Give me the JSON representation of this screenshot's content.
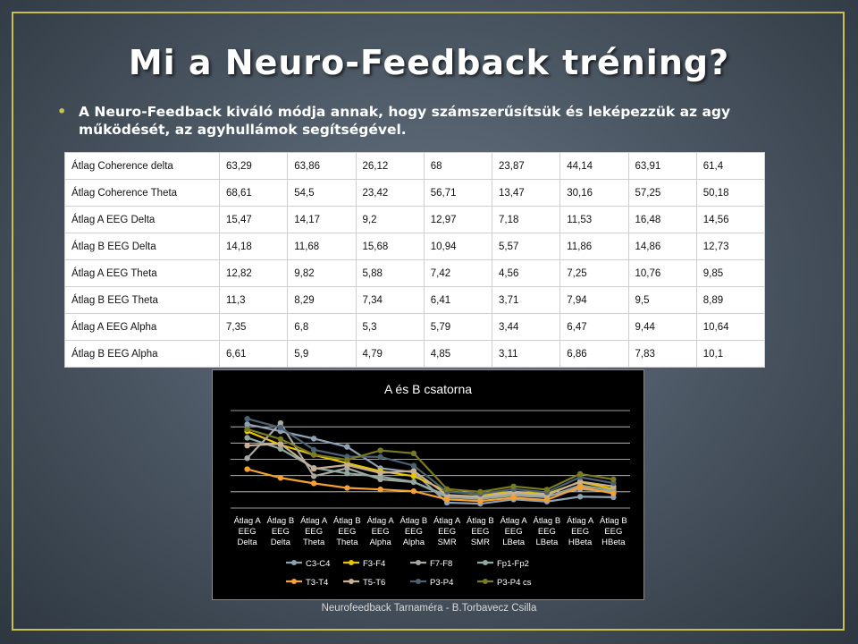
{
  "slide": {
    "title": "Mi a Neuro-Feedback tréning?",
    "bullet": "A Neuro-Feedback kiváló módja annak, hogy számszerűsítsük és leképezzük az agy működését, az agyhullámok segítségével.",
    "footer": "Neurofeedback Tarnaméra - B.Torbavecz Csilla"
  },
  "table": {
    "rows": [
      {
        "label": "Átlag Coherence delta",
        "values": [
          "63,29",
          "63,86",
          "26,12",
          "68",
          "23,87",
          "44,14",
          "63,91",
          "61,4"
        ]
      },
      {
        "label": "Átlag Coherence Theta",
        "values": [
          "68,61",
          "54,5",
          "23,42",
          "56,71",
          "13,47",
          "30,16",
          "57,25",
          "50,18"
        ]
      },
      {
        "label": "Átlag A EEG Delta",
        "values": [
          "15,47",
          "14,17",
          "9,2",
          "12,97",
          "7,18",
          "11,53",
          "16,48",
          "14,56"
        ]
      },
      {
        "label": "Átlag B EEG Delta",
        "values": [
          "14,18",
          "11,68",
          "15,68",
          "10,94",
          "5,57",
          "11,86",
          "14,86",
          "12,73"
        ]
      },
      {
        "label": "Átlag A EEG Theta",
        "values": [
          "12,82",
          "9,82",
          "5,88",
          "7,42",
          "4,56",
          "7,25",
          "10,76",
          "9,85"
        ]
      },
      {
        "label": "Átlag B EEG Theta",
        "values": [
          "11,3",
          "8,29",
          "7,34",
          "6,41",
          "3,71",
          "7,94",
          "9,5",
          "8,89"
        ]
      },
      {
        "label": "Átlag A EEG Alpha",
        "values": [
          "7,35",
          "6,8",
          "5,3",
          "5,79",
          "3,44",
          "6,47",
          "9,44",
          "10,64"
        ]
      },
      {
        "label": "Átlag B EEG Alpha",
        "values": [
          "6,61",
          "5,9",
          "4,79",
          "4,85",
          "3,11",
          "6,86",
          "7,83",
          "10,1"
        ]
      }
    ]
  },
  "chart_data": {
    "type": "line",
    "title": "A és B csatorna",
    "categories": [
      [
        "Átlag A",
        "EEG",
        "Delta"
      ],
      [
        "Átlag B",
        "EEG",
        "Delta"
      ],
      [
        "Átlag A",
        "EEG",
        "Theta"
      ],
      [
        "Átlag B",
        "EEG",
        "Theta"
      ],
      [
        "Átlag A",
        "EEG",
        "Alpha"
      ],
      [
        "Átlag B",
        "EEG",
        "Alpha"
      ],
      [
        "Átlag A",
        "EEG",
        "SMR"
      ],
      [
        "Átlag B",
        "EEG",
        "SMR"
      ],
      [
        "Átlag A",
        "EEG",
        "LBeta"
      ],
      [
        "Átlag B",
        "EEG",
        "LBeta"
      ],
      [
        "Átlag A",
        "EEG",
        "HBeta"
      ],
      [
        "Átlag B",
        "EEG",
        "HBeta"
      ]
    ],
    "ylim": [
      0,
      18
    ],
    "gridlines": 6,
    "grid": true,
    "legend": "bottom",
    "series": [
      {
        "name": "C3-C4",
        "color": "#8fa2b4",
        "values": [
          15.47,
          14.18,
          12.82,
          11.3,
          7.35,
          6.61,
          1.0,
          0.8,
          1.6,
          1.2,
          2.1,
          2.0
        ]
      },
      {
        "name": "F3-F4",
        "color": "#e6c400",
        "values": [
          14.17,
          11.68,
          9.82,
          8.29,
          6.8,
          5.9,
          3.1,
          2.5,
          3.0,
          2.6,
          4.8,
          3.5
        ]
      },
      {
        "name": "F7-F8",
        "color": "#a8a8a0",
        "values": [
          9.2,
          15.68,
          5.88,
          7.34,
          5.3,
          4.79,
          2.3,
          2.0,
          2.6,
          2.2,
          3.5,
          3.0
        ]
      },
      {
        "name": "Fp1-Fp2",
        "color": "#90a8a0",
        "values": [
          12.97,
          10.94,
          7.42,
          6.41,
          5.79,
          4.85,
          2.0,
          1.7,
          2.3,
          2.0,
          4.2,
          3.2
        ]
      },
      {
        "name": "T3-T4",
        "color": "#f5a030",
        "values": [
          7.18,
          5.57,
          4.56,
          3.71,
          3.44,
          3.11,
          1.6,
          1.3,
          1.9,
          1.5,
          3.9,
          2.7
        ]
      },
      {
        "name": "T5-T6",
        "color": "#c8b090",
        "values": [
          11.53,
          11.86,
          7.25,
          7.94,
          6.47,
          6.86,
          2.4,
          2.1,
          2.9,
          2.4,
          4.9,
          4.0
        ]
      },
      {
        "name": "P3-P4",
        "color": "#4a6272",
        "values": [
          16.48,
          14.86,
          10.76,
          9.5,
          9.44,
          7.83,
          3.0,
          2.6,
          3.5,
          2.9,
          5.7,
          4.6
        ]
      },
      {
        "name": "P3-P4 cs",
        "color": "#7a7a20",
        "values": [
          14.56,
          12.73,
          9.85,
          8.89,
          10.64,
          10.1,
          3.5,
          3.0,
          4.0,
          3.4,
          6.3,
          5.3
        ]
      }
    ]
  }
}
